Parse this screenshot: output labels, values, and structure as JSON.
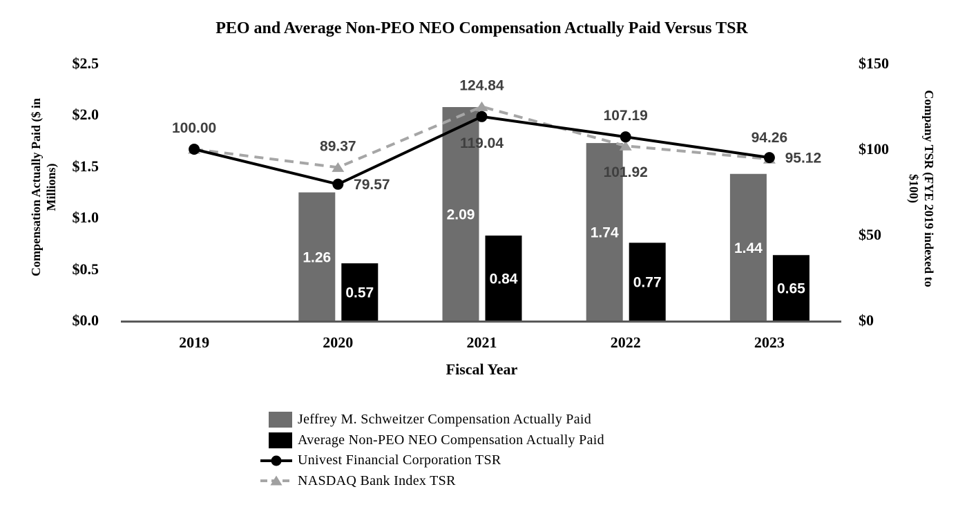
{
  "chart_data": {
    "type": "combo-bar-line",
    "title": "PEO and Average Non-PEO NEO Compensation Actually Paid Versus TSR",
    "xlabel": "Fiscal Year",
    "categories": [
      "2019",
      "2020",
      "2021",
      "2022",
      "2023"
    ],
    "left_axis": {
      "label": "Compensation Actually Paid ($ in\nMillions)",
      "ticks": [
        "$0.0",
        "$0.5",
        "$1.0",
        "$1.5",
        "$2.0",
        "$2.5"
      ],
      "min": 0,
      "max": 2.5
    },
    "right_axis": {
      "label": "Company TSR (FYE 2019 indexed to\n$100)",
      "ticks": [
        "$0",
        "$50",
        "$100",
        "$150"
      ],
      "min": 0,
      "max": 150
    },
    "bar_series": [
      {
        "name": "Jeffrey M. Schweitzer Compensation Actually Paid",
        "color": "#6e6e6e",
        "label_color": "#ffffff",
        "values": [
          null,
          1.26,
          2.09,
          1.74,
          1.44
        ],
        "labels": [
          "",
          "1.26",
          "2.09",
          "1.74",
          "1.44"
        ]
      },
      {
        "name": "Average Non-PEO NEO Compensation Actually Paid",
        "color": "#000000",
        "label_color": "#ffffff",
        "values": [
          null,
          0.57,
          0.84,
          0.77,
          0.65
        ],
        "labels": [
          "",
          "0.57",
          "0.84",
          "0.77",
          "0.65"
        ]
      }
    ],
    "line_series": [
      {
        "name": "NASDAQ Bank Index TSR",
        "color": "#a6a6a6",
        "style": "dashed",
        "marker": "triangle",
        "marker_color": "#a0a0a0",
        "values": [
          100.0,
          89.37,
          124.84,
          101.92,
          94.26
        ],
        "labels": [
          "",
          "89.37",
          "124.84",
          "101.92",
          "94.26"
        ],
        "label_pos": [
          "",
          "above",
          "above",
          "below",
          "above"
        ]
      },
      {
        "name": "Univest Financial Corporation TSR",
        "color": "#000000",
        "style": "solid",
        "marker": "circle",
        "marker_color": "#000000",
        "values": [
          100.0,
          79.57,
          119.04,
          107.19,
          95.12
        ],
        "labels": [
          "100.00",
          "79.57",
          "119.04",
          "107.19",
          "95.12"
        ],
        "label_pos": [
          "above",
          "right",
          "below",
          "above",
          "right"
        ]
      }
    ],
    "value_label_color": "#3f3f3f",
    "axis_color": "#595959",
    "legend": [
      {
        "type": "bar",
        "color": "#6e6e6e",
        "label": "Jeffrey M. Schweitzer Compensation Actually Paid"
      },
      {
        "type": "bar",
        "color": "#000000",
        "label": "Average Non-PEO NEO Compensation Actually Paid"
      },
      {
        "type": "line",
        "style": "solid",
        "marker": "circle",
        "color": "#000000",
        "marker_color": "#000000",
        "label": "Univest Financial Corporation TSR"
      },
      {
        "type": "line",
        "style": "dashed",
        "marker": "triangle",
        "color": "#a6a6a6",
        "marker_color": "#a0a0a0",
        "label": "NASDAQ Bank Index TSR"
      }
    ]
  }
}
